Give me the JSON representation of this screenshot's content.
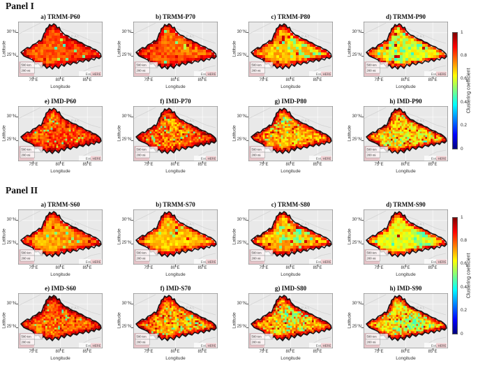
{
  "panels": [
    {
      "title": "Panel I",
      "subplots": [
        {
          "title": "a) TRMM-P60",
          "style": {
            "cell": 4,
            "interior": 0.8,
            "edge": 0.955,
            "noise": 0.05,
            "green": 0.012,
            "red": 0.03,
            "seed": 11
          }
        },
        {
          "title": "b) TRMM-P70",
          "style": {
            "cell": 4,
            "interior": 0.77,
            "edge": 0.95,
            "noise": 0.055,
            "green": 0.02,
            "red": 0.03,
            "seed": 22
          }
        },
        {
          "title": "c) TRMM-P80",
          "style": {
            "cell": 4,
            "interior": 0.7,
            "edge": 0.945,
            "noise": 0.06,
            "green": 0.05,
            "red": 0.03,
            "seed": 33
          }
        },
        {
          "title": "d) TRMM-P90",
          "style": {
            "cell": 4,
            "interior": 0.66,
            "edge": 0.94,
            "noise": 0.06,
            "green": 0.1,
            "red": 0.02,
            "seed": 44
          }
        },
        {
          "title": "e) IMD-P60",
          "style": {
            "cell": 2.6,
            "interior": 0.79,
            "edge": 0.955,
            "noise": 0.09,
            "green": 0.02,
            "red": 0.05,
            "seed": 55
          }
        },
        {
          "title": "f) IMD-P70",
          "style": {
            "cell": 2.6,
            "interior": 0.76,
            "edge": 0.95,
            "noise": 0.1,
            "green": 0.03,
            "red": 0.05,
            "seed": 66
          }
        },
        {
          "title": "g) IMD-P80",
          "style": {
            "cell": 2.6,
            "interior": 0.71,
            "edge": 0.945,
            "noise": 0.1,
            "green": 0.06,
            "red": 0.05,
            "seed": 77
          }
        },
        {
          "title": "h) IMD-P90",
          "style": {
            "cell": 2.6,
            "interior": 0.67,
            "edge": 0.94,
            "noise": 0.11,
            "green": 0.1,
            "red": 0.04,
            "seed": 88
          }
        }
      ]
    },
    {
      "title": "Panel II",
      "subplots": [
        {
          "title": "a) TRMM-S60",
          "style": {
            "cell": 4,
            "interior": 0.72,
            "edge": 0.95,
            "noise": 0.05,
            "green": 0.015,
            "red": 0.03,
            "seed": 111
          }
        },
        {
          "title": "b) TRMM-S70",
          "style": {
            "cell": 4,
            "interior": 0.7,
            "edge": 0.945,
            "noise": 0.055,
            "green": 0.03,
            "red": 0.03,
            "seed": 122
          }
        },
        {
          "title": "c) TRMM-S80",
          "style": {
            "cell": 4,
            "interior": 0.67,
            "edge": 0.94,
            "noise": 0.06,
            "green": 0.06,
            "red": 0.02,
            "seed": 133
          }
        },
        {
          "title": "d) TRMM-S90",
          "style": {
            "cell": 4,
            "interior": 0.64,
            "edge": 0.935,
            "noise": 0.06,
            "green": 0.12,
            "red": 0.02,
            "seed": 144
          }
        },
        {
          "title": "e) IMD-S60",
          "style": {
            "cell": 2.6,
            "interior": 0.77,
            "edge": 0.95,
            "noise": 0.09,
            "green": 0.02,
            "red": 0.05,
            "seed": 155
          }
        },
        {
          "title": "f) IMD-S70",
          "style": {
            "cell": 2.6,
            "interior": 0.73,
            "edge": 0.945,
            "noise": 0.1,
            "green": 0.04,
            "red": 0.05,
            "seed": 166
          }
        },
        {
          "title": "g) IMD-S80",
          "style": {
            "cell": 2.6,
            "interior": 0.7,
            "edge": 0.94,
            "noise": 0.1,
            "green": 0.07,
            "red": 0.04,
            "seed": 177
          }
        },
        {
          "title": "h) IMD-S90",
          "style": {
            "cell": 2.6,
            "interior": 0.66,
            "edge": 0.935,
            "noise": 0.11,
            "green": 0.12,
            "red": 0.04,
            "seed": 188
          }
        }
      ]
    }
  ],
  "axes": {
    "xlabel": "Longitude",
    "ylabel": "Latitude",
    "xticks": [
      "75°E",
      "80°E",
      "85°E"
    ],
    "yticks": [
      "30°N",
      "25°N"
    ]
  },
  "map_overlay": {
    "country_label": "NEPAL",
    "scalebar_km": "500 km",
    "scalebar_mi": "200 mi",
    "attribution": "Esri, HERE"
  },
  "colorbar": {
    "label": "Clustering coefficient",
    "min": 0,
    "max": 1,
    "ticks": [
      "1",
      "0.8",
      "0.6",
      "0.4",
      "0.2",
      "0"
    ],
    "gradient_bottom_to_top": [
      {
        "color": "#00007f",
        "pct": 0
      },
      {
        "color": "#0000ff",
        "pct": 12
      },
      {
        "color": "#00ffff",
        "pct": 38
      },
      {
        "color": "#ffff00",
        "pct": 63
      },
      {
        "color": "#ff0000",
        "pct": 88
      },
      {
        "color": "#7f0000",
        "pct": 100
      }
    ]
  },
  "map_colors": {
    "basemap_bg": "#e9e9e9",
    "graticule": "rgba(255,255,255,0.85)",
    "border_lines": "#d2d2d2",
    "basin_outline": "#101010",
    "scalebar_overlay_pink": "rgba(228,160,168,0.5)",
    "attribution_pink": "rgba(235,178,184,0.6)"
  }
}
